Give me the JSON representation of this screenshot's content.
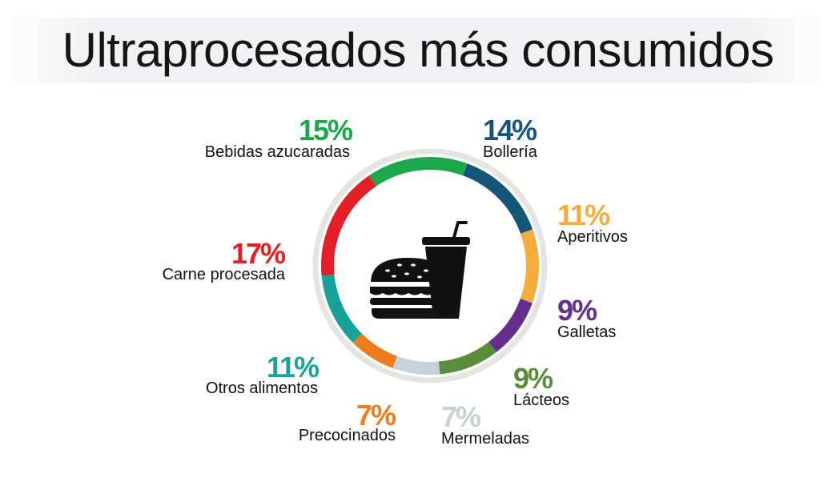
{
  "chart_data": {
    "type": "pie",
    "title": "Ultraprocesados más consumidos",
    "center_icon": "fast-food-icon",
    "slices": [
      {
        "name": "Bebidas azucaradas",
        "value": 15,
        "value_label": "15%",
        "color": "#1ba84a"
      },
      {
        "name": "Bollería",
        "value": 14,
        "value_label": "14%",
        "color": "#16557a"
      },
      {
        "name": "Aperitivos",
        "value": 11,
        "value_label": "11%",
        "color": "#f5ac3b"
      },
      {
        "name": "Galletas",
        "value": 9,
        "value_label": "9%",
        "color": "#652d8e"
      },
      {
        "name": "Lácteos",
        "value": 9,
        "value_label": "9%",
        "color": "#5b8c3a"
      },
      {
        "name": "Mermeladas",
        "value": 7,
        "value_label": "7%",
        "color": "#c8d1d8"
      },
      {
        "name": "Precocinados",
        "value": 7,
        "value_label": "7%",
        "color": "#ee7c1f"
      },
      {
        "name": "Otros alimentos",
        "value": 11,
        "value_label": "11%",
        "color": "#17a39a"
      },
      {
        "name": "Carne procesada",
        "value": 17,
        "value_label": "17%",
        "color": "#e41f26"
      }
    ]
  }
}
